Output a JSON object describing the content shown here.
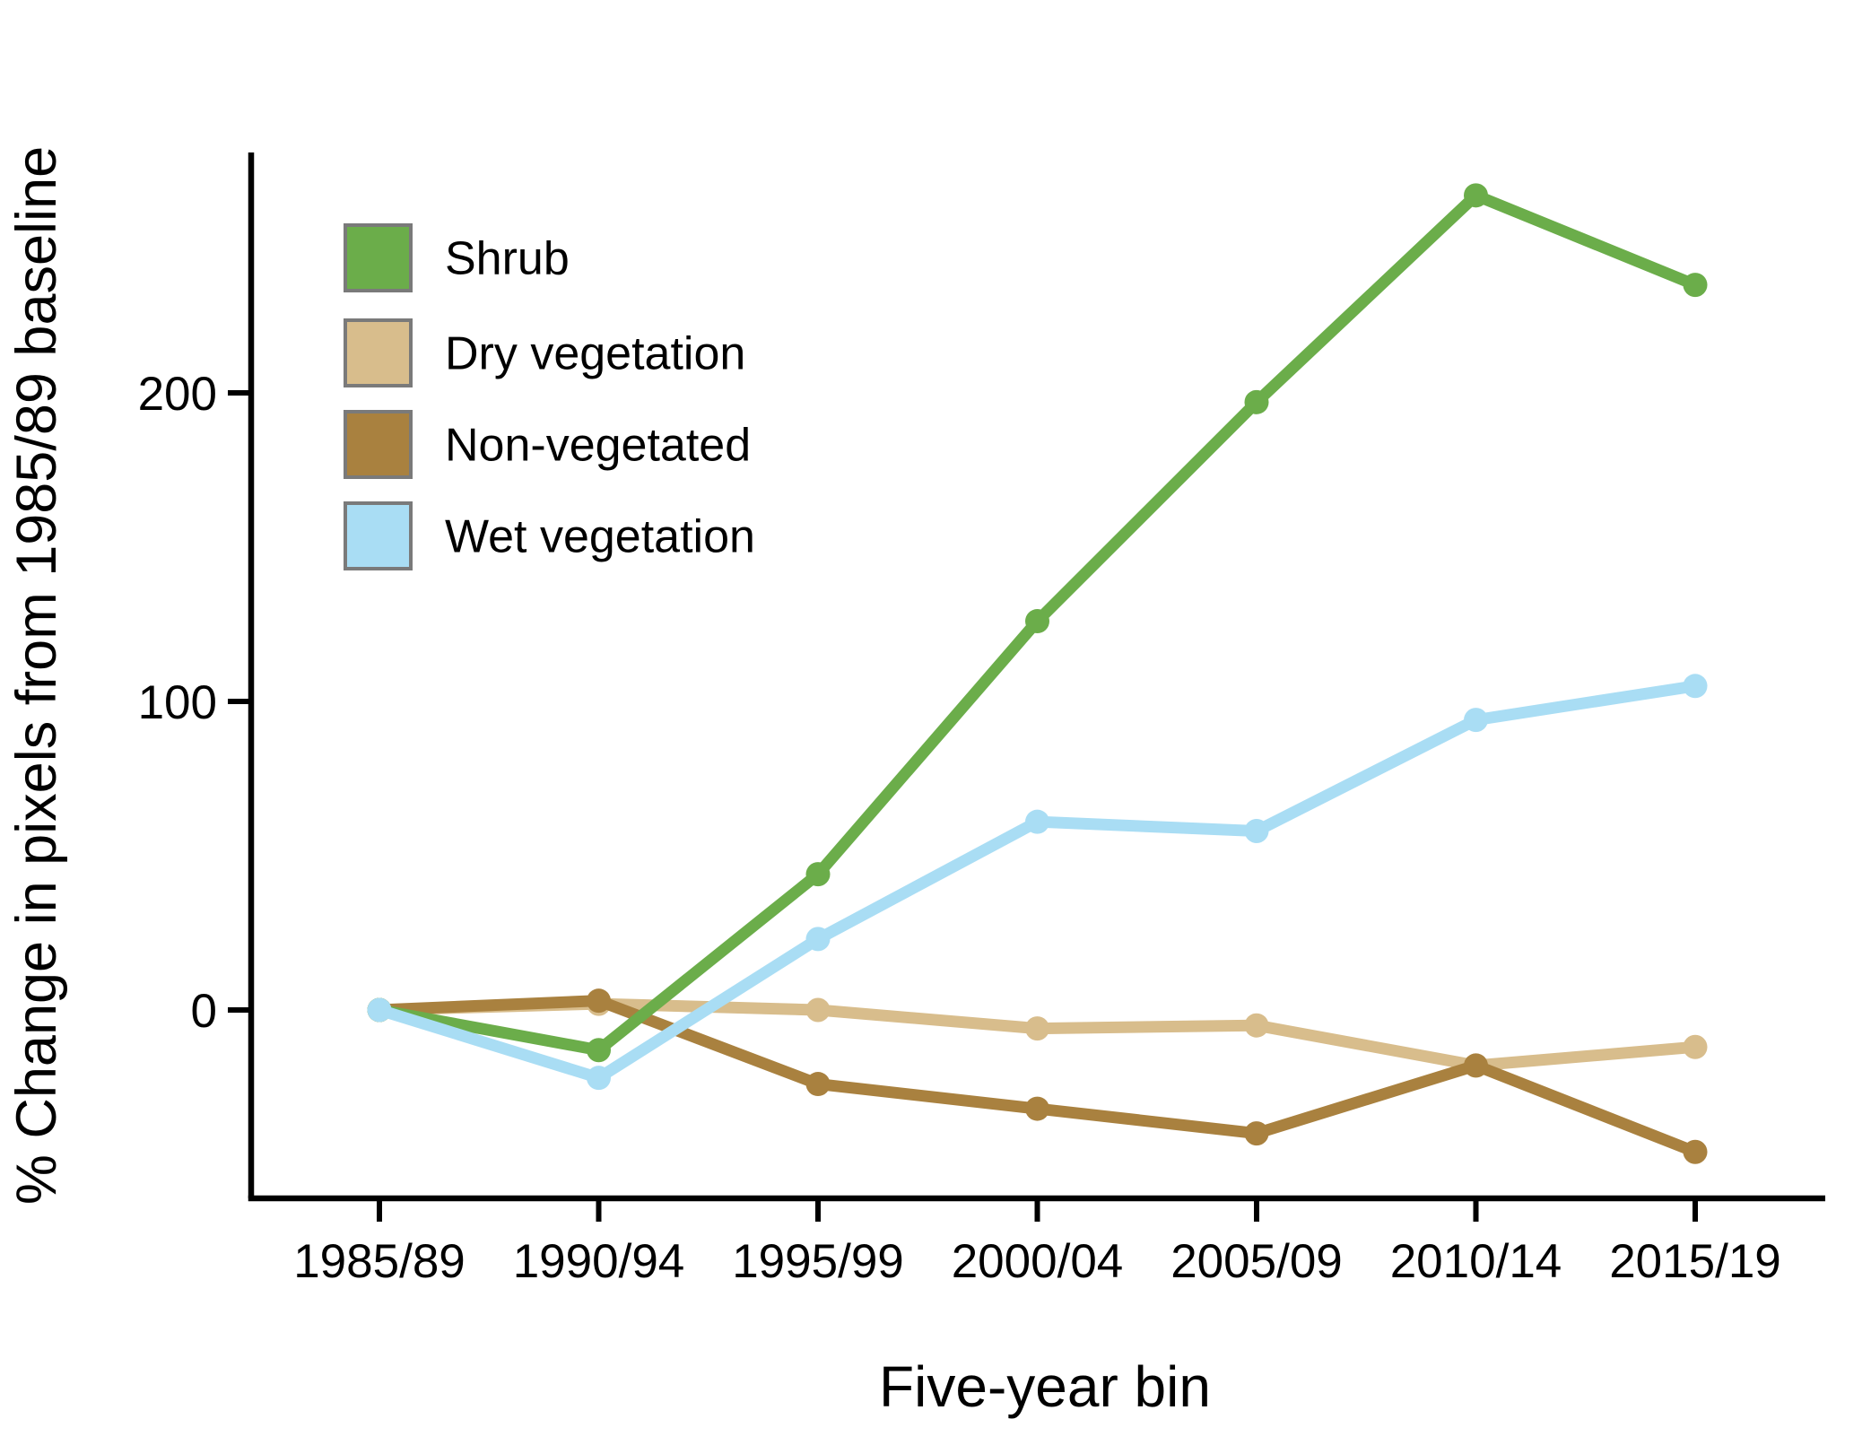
{
  "figure": {
    "background_color": "#ffffff",
    "text_color": "#000000",
    "legend_border_color": "#7a7a7a"
  },
  "chart_data": {
    "type": "line",
    "title": "",
    "xlabel": "Five-year bin",
    "ylabel": "% Change in pixels from 1985/89 baseline",
    "categories": [
      "1985/89",
      "1990/94",
      "1995/99",
      "2000/04",
      "2005/09",
      "2010/14",
      "2015/19"
    ],
    "series": [
      {
        "name": "Shrub",
        "color": "#6bad4a",
        "values": [
          0,
          -13,
          44,
          126,
          197,
          264,
          235
        ]
      },
      {
        "name": "Dry vegetation",
        "color": "#d8bd8c",
        "values": [
          0,
          2,
          0,
          -6,
          -5,
          -18,
          -12
        ]
      },
      {
        "name": "Non-vegetated",
        "color": "#a9813f",
        "values": [
          0,
          3,
          -24,
          -32,
          -40,
          -18,
          -46
        ]
      },
      {
        "name": "Wet vegetation",
        "color": "#a9ddf4",
        "values": [
          0,
          -22,
          23,
          61,
          58,
          94,
          105
        ]
      }
    ],
    "draw_order": [
      "Dry vegetation",
      "Non-vegetated",
      "Shrub",
      "Wet vegetation"
    ],
    "y_ticks": [
      200,
      100,
      0
    ],
    "ylim": [
      -62,
      278
    ],
    "grid": false,
    "legend_position": "top-left",
    "legend_labels": [
      "Shrub",
      "Dry vegetation",
      "Non-vegetated",
      "Wet vegetation"
    ]
  }
}
